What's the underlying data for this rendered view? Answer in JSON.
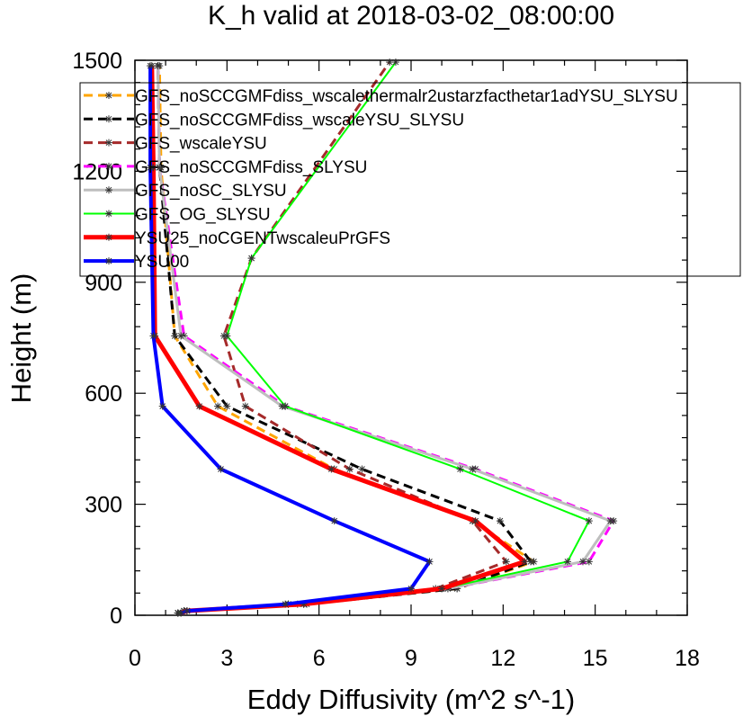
{
  "chart_data": {
    "type": "line",
    "title": "K_h valid at 2018-03-02_08:00:00",
    "xlabel": "Eddy Diffusivity (m^2 s^-1)",
    "ylabel": "Height (m)",
    "xlim": [
      0,
      18
    ],
    "ylim": [
      0,
      1500
    ],
    "xticks": [
      0,
      3,
      6,
      9,
      12,
      15,
      18
    ],
    "yticks": [
      0,
      300,
      600,
      900,
      1200,
      1500
    ],
    "legend_position": "top-right",
    "series": [
      {
        "name": "GFS_noSCCGMFdiss_wscalethermalr2ustarzfacthetar1adYSU_SLYSU",
        "color": "#ffa500",
        "dash": "10,6",
        "width": 3,
        "points": [
          [
            1.4,
            6
          ],
          [
            1.6,
            12
          ],
          [
            5.5,
            30
          ],
          [
            10.5,
            72
          ],
          [
            13.0,
            145
          ],
          [
            11.0,
            255
          ],
          [
            6.5,
            395
          ],
          [
            2.7,
            565
          ],
          [
            1.3,
            755
          ],
          [
            0.85,
            1210
          ],
          [
            0.8,
            1485
          ]
        ]
      },
      {
        "name": "GFS_noSCCGMFdiss_wscaleYSU_SLYSU",
        "color": "#000000",
        "dash": "10,6",
        "width": 3,
        "points": [
          [
            1.4,
            6
          ],
          [
            1.6,
            12
          ],
          [
            5.6,
            30
          ],
          [
            10.5,
            72
          ],
          [
            12.9,
            145
          ],
          [
            11.9,
            255
          ],
          [
            7.4,
            395
          ],
          [
            3.0,
            565
          ],
          [
            1.3,
            755
          ],
          [
            0.8,
            1210
          ],
          [
            0.75,
            1485
          ]
        ]
      },
      {
        "name": "GFS_wscaleYSU",
        "color": "#a52a2a",
        "dash": "10,6",
        "width": 3,
        "points": [
          [
            1.4,
            6
          ],
          [
            1.6,
            12
          ],
          [
            5.3,
            30
          ],
          [
            9.8,
            72
          ],
          [
            12.1,
            145
          ],
          [
            11.0,
            255
          ],
          [
            7.0,
            395
          ],
          [
            3.6,
            565
          ],
          [
            2.9,
            755
          ],
          [
            3.8,
            965
          ],
          [
            8.3,
            1495
          ]
        ]
      },
      {
        "name": "GFS_noSCCGMFdiss_SLYSU",
        "color": "#ff00ff",
        "dash": "10,6",
        "width": 3,
        "points": [
          [
            1.4,
            6
          ],
          [
            1.7,
            12
          ],
          [
            5.0,
            30
          ],
          [
            10.2,
            72
          ],
          [
            14.8,
            145
          ],
          [
            15.6,
            255
          ],
          [
            11.1,
            395
          ],
          [
            4.9,
            565
          ],
          [
            1.6,
            755
          ],
          [
            0.8,
            1210
          ],
          [
            0.75,
            1485
          ]
        ]
      },
      {
        "name": "GFS_noSC_SLYSU",
        "color": "#bebebe",
        "dash": "",
        "width": 3,
        "points": [
          [
            1.4,
            6
          ],
          [
            1.7,
            12
          ],
          [
            5.0,
            30
          ],
          [
            10.2,
            72
          ],
          [
            14.6,
            145
          ],
          [
            15.5,
            255
          ],
          [
            11.0,
            395
          ],
          [
            4.8,
            565
          ],
          [
            1.5,
            755
          ],
          [
            0.8,
            1210
          ],
          [
            0.75,
            1485
          ]
        ]
      },
      {
        "name": "GFS_OG_SLYSU",
        "color": "#00ff00",
        "dash": "",
        "width": 2,
        "points": [
          [
            1.4,
            6
          ],
          [
            1.6,
            12
          ],
          [
            5.0,
            30
          ],
          [
            10.0,
            72
          ],
          [
            14.1,
            145
          ],
          [
            14.8,
            255
          ],
          [
            10.6,
            395
          ],
          [
            4.9,
            565
          ],
          [
            3.0,
            755
          ],
          [
            3.8,
            965
          ],
          [
            8.5,
            1495
          ]
        ]
      },
      {
        "name": "YSU25_noCGENTwscaleuPrGFS",
        "color": "#ff0000",
        "dash": "",
        "width": 5,
        "points": [
          [
            1.5,
            6
          ],
          [
            1.7,
            12
          ],
          [
            5.5,
            30
          ],
          [
            10.0,
            72
          ],
          [
            12.7,
            145
          ],
          [
            11.1,
            255
          ],
          [
            6.4,
            395
          ],
          [
            2.1,
            565
          ],
          [
            0.65,
            755
          ],
          [
            0.6,
            1210
          ],
          [
            0.55,
            1485
          ]
        ]
      },
      {
        "name": "YSU00",
        "color": "#0000ff",
        "dash": "",
        "width": 4,
        "points": [
          [
            1.5,
            6
          ],
          [
            1.7,
            12
          ],
          [
            4.9,
            30
          ],
          [
            9.0,
            72
          ],
          [
            9.6,
            145
          ],
          [
            6.5,
            255
          ],
          [
            2.8,
            395
          ],
          [
            0.9,
            565
          ],
          [
            0.6,
            755
          ],
          [
            0.5,
            1210
          ],
          [
            0.5,
            1485
          ]
        ]
      }
    ]
  }
}
